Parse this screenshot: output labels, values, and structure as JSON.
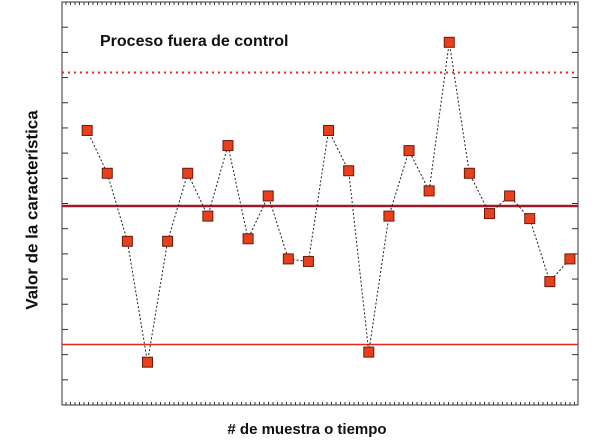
{
  "chart_data": {
    "type": "line",
    "annotation": "Proceso fuera de control",
    "x_label": "# de muestra o tiempo",
    "y_label": "Valor de la característica",
    "x": [
      1,
      2,
      3,
      4,
      5,
      6,
      7,
      8,
      9,
      10,
      11,
      12,
      13,
      14,
      15,
      16,
      17,
      18,
      19,
      20,
      21,
      22,
      23,
      24,
      25
    ],
    "series": [
      {
        "color": "#e8401c",
        "values": [
          10.9,
          9.2,
          6.5,
          1.7,
          6.5,
          9.2,
          7.5,
          10.3,
          6.6,
          8.3,
          5.8,
          5.7,
          10.9,
          9.3,
          2.1,
          7.5,
          10.1,
          8.5,
          14.4,
          9.2,
          7.6,
          8.3,
          7.4,
          4.9,
          5.8
        ]
      }
    ],
    "center_line": {
      "value": 7.9,
      "color": "#9b1b2a"
    },
    "upper_limit": {
      "value": 13.2,
      "color": "#e8281c"
    },
    "lower_limit": {
      "value": 2.4,
      "color": "#e8281c"
    },
    "xlim": [
      -0.25,
      25.4
    ],
    "ylim": [
      0,
      16
    ],
    "yticks": [
      0,
      1,
      2,
      3,
      4,
      5,
      6,
      7,
      8,
      9,
      10,
      11,
      12,
      13,
      14,
      15,
      16
    ]
  }
}
